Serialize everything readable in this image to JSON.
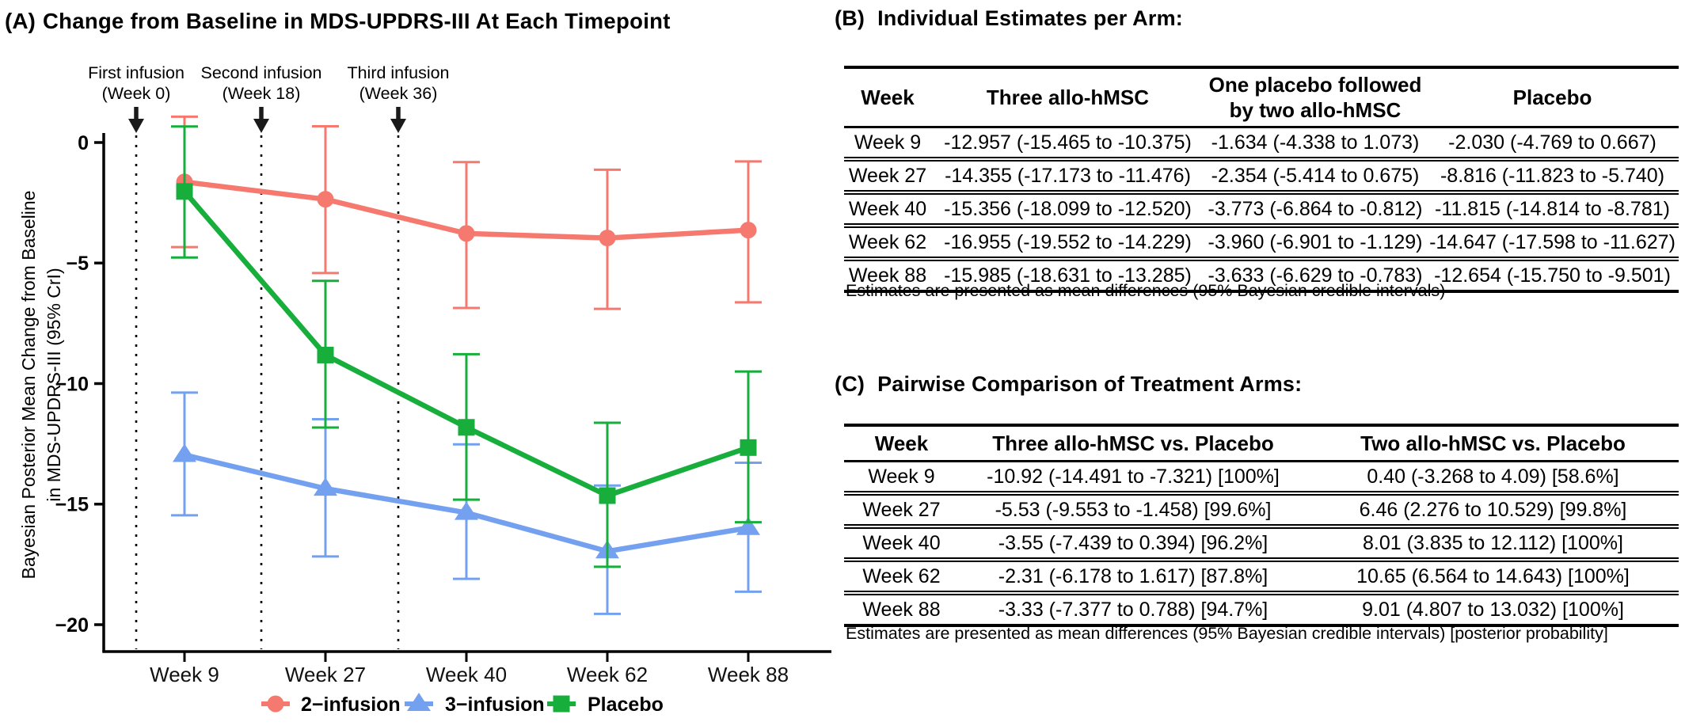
{
  "panel_a": {
    "label": "(A)",
    "title": "Change from Baseline in MDS-UPDRS-III At Each Timepoint"
  },
  "chart_data": {
    "type": "line",
    "title": "Change from Baseline in MDS-UPDRS-III At Each Timepoint",
    "categories": [
      "Week 9",
      "Week 27",
      "Week 40",
      "Week 62",
      "Week 88"
    ],
    "xlabel": "",
    "ylabel": "Bayesian Posterior Mean Change from Baseline in MDS-UPDRS-III (95% CrI)",
    "ylabel_lines": [
      "Bayesian Posterior Mean Change from Baseline",
      "in MDS-UPDRS-III (95% CrI)"
    ],
    "ylim": [
      -21.5,
      1.5
    ],
    "yticks": [
      {
        "v": 0,
        "label": "0"
      },
      {
        "v": -5,
        "label": "−5"
      },
      {
        "v": -10,
        "label": "−10"
      },
      {
        "v": -15,
        "label": "−15"
      },
      {
        "v": -20,
        "label": "−20"
      }
    ],
    "grid": false,
    "legend_position": "bottom",
    "annotations": [
      {
        "line1": "First infusion",
        "line2": "(Week 0)"
      },
      {
        "line1": "Second infusion",
        "line2": "(Week 18)"
      },
      {
        "line1": "Third infusion",
        "line2": "(Week 36)"
      }
    ],
    "series": [
      {
        "name": "2−infusion",
        "color": "#F5796E",
        "marker": "circle",
        "values": [
          -1.634,
          -2.354,
          -3.773,
          -3.96,
          -3.633
        ],
        "ci_low": [
          -4.338,
          -5.414,
          -6.864,
          -6.901,
          -6.629
        ],
        "ci_high": [
          1.073,
          0.675,
          -0.812,
          -1.129,
          -0.783
        ]
      },
      {
        "name": "3−infusion",
        "color": "#73A1EF",
        "marker": "triangle",
        "values": [
          -12.957,
          -14.355,
          -15.356,
          -16.955,
          -15.985
        ],
        "ci_low": [
          -15.465,
          -17.173,
          -18.099,
          -19.552,
          -18.631
        ],
        "ci_high": [
          -10.375,
          -11.476,
          -12.52,
          -14.229,
          -13.285
        ]
      },
      {
        "name": "Placebo",
        "color": "#17AE3C",
        "marker": "square",
        "values": [
          -2.03,
          -8.816,
          -11.815,
          -14.647,
          -12.654
        ],
        "ci_low": [
          -4.769,
          -11.823,
          -14.814,
          -17.598,
          -15.75
        ],
        "ci_high": [
          0.667,
          -5.74,
          -8.781,
          -11.627,
          -9.501
        ]
      }
    ]
  },
  "panel_b": {
    "label": "(B)",
    "title": "Individual Estimates per Arm:",
    "columns": [
      "Week",
      "Three allo-hMSC",
      "One placebo followed\nby two allo-hMSC",
      "Placebo"
    ],
    "rows": [
      [
        "Week 9",
        "-12.957 (-15.465 to -10.375)",
        "-1.634 (-4.338 to 1.073)",
        "-2.030 (-4.769 to 0.667)"
      ],
      [
        "Week 27",
        "-14.355 (-17.173 to -11.476)",
        "-2.354 (-5.414 to 0.675)",
        "-8.816 (-11.823 to -5.740)"
      ],
      [
        "Week 40",
        "-15.356 (-18.099 to -12.520)",
        "-3.773 (-6.864 to -0.812)",
        "-11.815 (-14.814 to -8.781)"
      ],
      [
        "Week 62",
        "-16.955 (-19.552 to -14.229)",
        "-3.960 (-6.901 to -1.129)",
        "-14.647 (-17.598 to -11.627)"
      ],
      [
        "Week 88",
        "-15.985 (-18.631 to -13.285)",
        "-3.633 (-6.629 to -0.783)",
        "-12.654 (-15.750 to -9.501)"
      ]
    ],
    "footnote": "Estimates are presented as mean differences (95% Bayesian credible intervals)"
  },
  "panel_c": {
    "label": "(C)",
    "title": "Pairwise Comparison of Treatment Arms:",
    "columns": [
      "Week",
      "Three allo-hMSC vs. Placebo",
      "Two allo-hMSC vs. Placebo"
    ],
    "rows": [
      [
        "Week 9",
        "-10.92 (-14.491 to -7.321) [100%]",
        "0.40 (-3.268 to 4.09) [58.6%]"
      ],
      [
        "Week 27",
        "-5.53 (-9.553 to -1.458) [99.6%]",
        "6.46 (2.276 to 10.529) [99.8%]"
      ],
      [
        "Week 40",
        "-3.55 (-7.439 to 0.394) [96.2%]",
        "8.01 (3.835 to 12.112) [100%]"
      ],
      [
        "Week 62",
        "-2.31 (-6.178 to 1.617) [87.8%]",
        "10.65 (6.564 to 14.643) [100%]"
      ],
      [
        "Week 88",
        "-3.33 (-7.377 to 0.788) [94.7%]",
        "9.01 (4.807 to 13.032) [100%]"
      ]
    ],
    "footnote": "Estimates are presented as mean differences (95% Bayesian credible intervals) [posterior probability]"
  }
}
